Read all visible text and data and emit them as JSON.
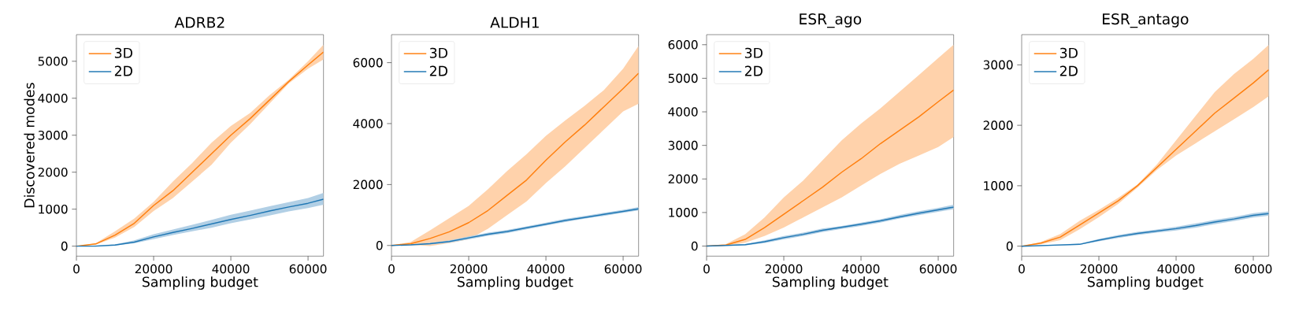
{
  "chart_data": [
    {
      "type": "line",
      "title": "ADRB2",
      "xlabel": "Sampling budget",
      "ylabel": "Discovered modes",
      "legend": "top left",
      "x": [
        0,
        5000,
        10000,
        15000,
        20000,
        25000,
        30000,
        35000,
        40000,
        45000,
        50000,
        55000,
        60000,
        64000
      ],
      "xlim": [
        0,
        64000
      ],
      "ylim": [
        -270,
        5720
      ],
      "xticks": [
        0,
        20000,
        40000,
        60000
      ],
      "yticks": [
        0,
        1000,
        2000,
        3000,
        4000,
        5000
      ],
      "series": [
        {
          "name": "3D",
          "color": "#ff7f0e",
          "values": [
            0,
            60,
            300,
            620,
            1100,
            1500,
            2000,
            2500,
            3000,
            3450,
            3950,
            4450,
            4900,
            5250
          ],
          "lower": [
            0,
            40,
            230,
            520,
            950,
            1300,
            1750,
            2200,
            2800,
            3300,
            3850,
            4400,
            4800,
            5050
          ],
          "upper": [
            0,
            80,
            400,
            750,
            1200,
            1750,
            2250,
            2800,
            3250,
            3600,
            4080,
            4500,
            5000,
            5450
          ]
        },
        {
          "name": "2D",
          "color": "#1f77b4",
          "values": [
            0,
            0,
            30,
            110,
            250,
            370,
            480,
            600,
            720,
            830,
            950,
            1060,
            1160,
            1270
          ],
          "lower": [
            0,
            0,
            20,
            80,
            190,
            300,
            400,
            500,
            620,
            720,
            830,
            940,
            1030,
            1120
          ],
          "upper": [
            0,
            20,
            50,
            160,
            320,
            450,
            580,
            710,
            850,
            960,
            1080,
            1190,
            1300,
            1440
          ]
        }
      ]
    },
    {
      "type": "line",
      "title": "ALDH1",
      "xlabel": "Sampling budget",
      "legend": "top left",
      "x": [
        0,
        5000,
        10000,
        15000,
        20000,
        25000,
        30000,
        35000,
        40000,
        45000,
        50000,
        55000,
        60000,
        64000
      ],
      "xlim": [
        0,
        64000
      ],
      "ylim": [
        -350,
        6920
      ],
      "xticks": [
        0,
        20000,
        40000,
        60000
      ],
      "yticks": [
        0,
        2000,
        4000,
        6000
      ],
      "series": [
        {
          "name": "3D",
          "color": "#ff7f0e",
          "values": [
            0,
            60,
            230,
            450,
            750,
            1150,
            1650,
            2150,
            2800,
            3400,
            3950,
            4550,
            5150,
            5650
          ],
          "lower": [
            0,
            20,
            -20,
            80,
            200,
            550,
            1000,
            1450,
            2050,
            2600,
            3200,
            3800,
            4400,
            4650
          ],
          "upper": [
            0,
            120,
            500,
            900,
            1300,
            1850,
            2450,
            3000,
            3600,
            4100,
            4580,
            5100,
            5800,
            6550
          ]
        },
        {
          "name": "2D",
          "color": "#1f77b4",
          "values": [
            0,
            20,
            60,
            130,
            250,
            370,
            460,
            580,
            700,
            820,
            920,
            1020,
            1120,
            1200
          ],
          "lower": [
            0,
            5,
            30,
            90,
            200,
            320,
            410,
            530,
            650,
            770,
            880,
            970,
            1070,
            1150
          ],
          "upper": [
            0,
            35,
            90,
            170,
            300,
            420,
            510,
            630,
            750,
            870,
            970,
            1070,
            1170,
            1260
          ]
        }
      ]
    },
    {
      "type": "line",
      "title": "ESR_ago",
      "xlabel": "Sampling budget",
      "legend": "top left",
      "x": [
        0,
        5000,
        10000,
        15000,
        20000,
        25000,
        30000,
        35000,
        40000,
        45000,
        50000,
        55000,
        60000,
        64000
      ],
      "xlim": [
        0,
        64000
      ],
      "ylim": [
        -300,
        6300
      ],
      "xticks": [
        0,
        20000,
        40000,
        60000
      ],
      "yticks": [
        0,
        1000,
        2000,
        3000,
        4000,
        5000,
        6000
      ],
      "series": [
        {
          "name": "3D",
          "color": "#ff7f0e",
          "values": [
            0,
            30,
            200,
            550,
            950,
            1350,
            1750,
            2200,
            2600,
            3050,
            3450,
            3850,
            4300,
            4650
          ],
          "lower": [
            0,
            10,
            100,
            300,
            550,
            850,
            1150,
            1450,
            1800,
            2150,
            2450,
            2700,
            2950,
            3250
          ],
          "upper": [
            0,
            60,
            350,
            850,
            1450,
            1950,
            2550,
            3150,
            3650,
            4100,
            4600,
            5100,
            5600,
            6000
          ]
        },
        {
          "name": "2D",
          "color": "#1f77b4",
          "values": [
            0,
            20,
            40,
            130,
            250,
            350,
            470,
            560,
            650,
            750,
            870,
            980,
            1080,
            1160
          ],
          "lower": [
            0,
            10,
            20,
            90,
            200,
            300,
            420,
            510,
            600,
            700,
            820,
            920,
            1020,
            1100
          ],
          "upper": [
            0,
            30,
            60,
            170,
            300,
            400,
            520,
            600,
            700,
            800,
            930,
            1040,
            1140,
            1230
          ]
        }
      ]
    },
    {
      "type": "line",
      "title": "ESR_antago",
      "xlabel": "Sampling budget",
      "legend": "top left",
      "x": [
        0,
        5000,
        10000,
        15000,
        20000,
        25000,
        30000,
        35000,
        40000,
        45000,
        50000,
        55000,
        60000,
        64000
      ],
      "xlim": [
        0,
        64000
      ],
      "ylim": [
        -165,
        3500
      ],
      "xticks": [
        0,
        20000,
        40000,
        60000
      ],
      "yticks": [
        0,
        1000,
        2000,
        3000
      ],
      "series": [
        {
          "name": "3D",
          "color": "#ff7f0e",
          "values": [
            0,
            50,
            150,
            350,
            550,
            750,
            1000,
            1300,
            1600,
            1900,
            2200,
            2450,
            2700,
            2920
          ],
          "lower": [
            0,
            30,
            100,
            280,
            480,
            700,
            970,
            1260,
            1500,
            1700,
            1900,
            2100,
            2300,
            2480
          ],
          "upper": [
            0,
            70,
            200,
            420,
            600,
            800,
            1020,
            1350,
            1750,
            2150,
            2550,
            2850,
            3100,
            3330
          ]
        },
        {
          "name": "2D",
          "color": "#1f77b4",
          "values": [
            0,
            10,
            20,
            30,
            100,
            160,
            210,
            250,
            290,
            340,
            400,
            450,
            510,
            540
          ],
          "lower": [
            0,
            5,
            10,
            20,
            80,
            135,
            185,
            225,
            260,
            305,
            365,
            415,
            475,
            505
          ],
          "upper": [
            0,
            15,
            30,
            40,
            120,
            185,
            235,
            275,
            320,
            375,
            435,
            485,
            545,
            575
          ]
        }
      ]
    }
  ]
}
